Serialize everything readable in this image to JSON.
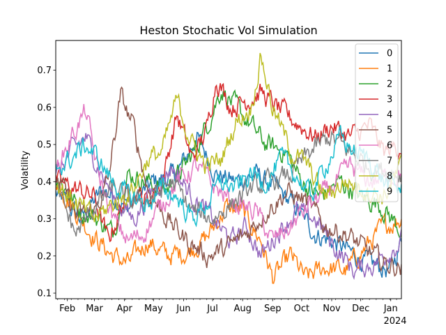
{
  "chart_data": {
    "type": "line",
    "title": "Heston Stochatic Vol Simulation",
    "xlabel": "",
    "ylabel": "Volatility",
    "ylim": [
      0.085,
      0.78
    ],
    "yticks": [
      "0.1",
      "0.2",
      "0.3",
      "0.4",
      "0.5",
      "0.6",
      "0.7"
    ],
    "x_start": "2023-01-20",
    "x_end": "2024-01-12",
    "x_major_ticks": [
      {
        "date": "2023-02-01",
        "label": "Feb"
      },
      {
        "date": "2023-03-01",
        "label": "Mar"
      },
      {
        "date": "2023-04-01",
        "label": "Apr"
      },
      {
        "date": "2023-05-01",
        "label": "May"
      },
      {
        "date": "2023-06-01",
        "label": "Jun"
      },
      {
        "date": "2023-07-01",
        "label": "Jul"
      },
      {
        "date": "2023-08-01",
        "label": "Aug"
      },
      {
        "date": "2023-09-01",
        "label": "Sep"
      },
      {
        "date": "2023-10-01",
        "label": "Oct"
      },
      {
        "date": "2023-11-01",
        "label": "Nov"
      },
      {
        "date": "2023-12-01",
        "label": "Dec"
      },
      {
        "date": "2024-01-01",
        "label": "Jan"
      }
    ],
    "x_year_label": "2024",
    "legend_position": "upper right",
    "series": [
      {
        "name": "0",
        "color": "#1f77b4",
        "points": [
          [
            "2023-01-20",
            0.37
          ],
          [
            "2023-02-15",
            0.3
          ],
          [
            "2023-03-10",
            0.38
          ],
          [
            "2023-04-05",
            0.33
          ],
          [
            "2023-05-01",
            0.4
          ],
          [
            "2023-05-25",
            0.42
          ],
          [
            "2023-06-15",
            0.52
          ],
          [
            "2023-07-05",
            0.42
          ],
          [
            "2023-07-25",
            0.4
          ],
          [
            "2023-08-15",
            0.42
          ],
          [
            "2023-09-05",
            0.38
          ],
          [
            "2023-09-25",
            0.33
          ],
          [
            "2023-10-15",
            0.26
          ],
          [
            "2023-11-01",
            0.24
          ],
          [
            "2023-11-20",
            0.21
          ],
          [
            "2023-12-10",
            0.18
          ],
          [
            "2024-01-01",
            0.16
          ],
          [
            "2024-01-12",
            0.24
          ]
        ]
      },
      {
        "name": "1",
        "color": "#ff7f0e",
        "points": [
          [
            "2023-01-20",
            0.41
          ],
          [
            "2023-02-10",
            0.32
          ],
          [
            "2023-03-01",
            0.25
          ],
          [
            "2023-03-20",
            0.2
          ],
          [
            "2023-04-05",
            0.18
          ],
          [
            "2023-04-25",
            0.24
          ],
          [
            "2023-05-15",
            0.2
          ],
          [
            "2023-06-05",
            0.21
          ],
          [
            "2023-06-25",
            0.25
          ],
          [
            "2023-07-15",
            0.33
          ],
          [
            "2023-08-01",
            0.32
          ],
          [
            "2023-08-20",
            0.24
          ],
          [
            "2023-09-01",
            0.14
          ],
          [
            "2023-09-20",
            0.2
          ],
          [
            "2023-10-05",
            0.14
          ],
          [
            "2023-10-25",
            0.17
          ],
          [
            "2023-11-15",
            0.16
          ],
          [
            "2023-12-05",
            0.22
          ],
          [
            "2023-12-25",
            0.28
          ],
          [
            "2024-01-12",
            0.3
          ]
        ]
      },
      {
        "name": "2",
        "color": "#2ca02c",
        "points": [
          [
            "2023-01-20",
            0.42
          ],
          [
            "2023-02-15",
            0.32
          ],
          [
            "2023-03-05",
            0.3
          ],
          [
            "2023-03-20",
            0.26
          ],
          [
            "2023-04-05",
            0.42
          ],
          [
            "2023-04-25",
            0.4
          ],
          [
            "2023-05-15",
            0.38
          ],
          [
            "2023-06-05",
            0.45
          ],
          [
            "2023-06-25",
            0.55
          ],
          [
            "2023-07-10",
            0.65
          ],
          [
            "2023-07-25",
            0.6
          ],
          [
            "2023-08-10",
            0.55
          ],
          [
            "2023-08-25",
            0.5
          ],
          [
            "2023-09-15",
            0.48
          ],
          [
            "2023-10-01",
            0.4
          ],
          [
            "2023-10-20",
            0.36
          ],
          [
            "2023-11-10",
            0.4
          ],
          [
            "2023-12-01",
            0.36
          ],
          [
            "2023-12-20",
            0.34
          ],
          [
            "2024-01-12",
            0.27
          ]
        ]
      },
      {
        "name": "3",
        "color": "#d62728",
        "points": [
          [
            "2023-01-20",
            0.4
          ],
          [
            "2023-02-10",
            0.38
          ],
          [
            "2023-03-01",
            0.36
          ],
          [
            "2023-03-15",
            0.24
          ],
          [
            "2023-04-05",
            0.38
          ],
          [
            "2023-04-25",
            0.35
          ],
          [
            "2023-05-10",
            0.4
          ],
          [
            "2023-05-25",
            0.58
          ],
          [
            "2023-06-10",
            0.46
          ],
          [
            "2023-06-25",
            0.54
          ],
          [
            "2023-07-05",
            0.68
          ],
          [
            "2023-07-20",
            0.6
          ],
          [
            "2023-08-05",
            0.62
          ],
          [
            "2023-08-20",
            0.64
          ],
          [
            "2023-09-05",
            0.6
          ],
          [
            "2023-09-25",
            0.56
          ],
          [
            "2023-10-15",
            0.52
          ],
          [
            "2023-11-01",
            0.55
          ],
          [
            "2023-11-20",
            0.52
          ],
          [
            "2023-12-10",
            0.55
          ],
          [
            "2023-12-25",
            0.48
          ],
          [
            "2024-01-12",
            0.5
          ]
        ]
      },
      {
        "name": "4",
        "color": "#9467bd",
        "points": [
          [
            "2023-01-20",
            0.41
          ],
          [
            "2023-02-05",
            0.48
          ],
          [
            "2023-02-20",
            0.52
          ],
          [
            "2023-03-05",
            0.44
          ],
          [
            "2023-03-20",
            0.36
          ],
          [
            "2023-04-10",
            0.3
          ],
          [
            "2023-05-01",
            0.38
          ],
          [
            "2023-05-20",
            0.44
          ],
          [
            "2023-06-10",
            0.36
          ],
          [
            "2023-07-01",
            0.3
          ],
          [
            "2023-07-20",
            0.24
          ],
          [
            "2023-08-05",
            0.28
          ],
          [
            "2023-08-20",
            0.2
          ],
          [
            "2023-09-05",
            0.26
          ],
          [
            "2023-09-25",
            0.32
          ],
          [
            "2023-10-15",
            0.3
          ],
          [
            "2023-11-05",
            0.22
          ],
          [
            "2023-11-25",
            0.16
          ],
          [
            "2023-12-15",
            0.18
          ],
          [
            "2024-01-12",
            0.24
          ]
        ]
      },
      {
        "name": "5",
        "color": "#8c564b",
        "points": [
          [
            "2023-01-20",
            0.42
          ],
          [
            "2023-02-10",
            0.31
          ],
          [
            "2023-03-01",
            0.32
          ],
          [
            "2023-03-15",
            0.4
          ],
          [
            "2023-03-28",
            0.63
          ],
          [
            "2023-04-10",
            0.55
          ],
          [
            "2023-04-25",
            0.38
          ],
          [
            "2023-05-15",
            0.3
          ],
          [
            "2023-06-05",
            0.24
          ],
          [
            "2023-06-25",
            0.2
          ],
          [
            "2023-07-15",
            0.22
          ],
          [
            "2023-08-05",
            0.26
          ],
          [
            "2023-08-25",
            0.32
          ],
          [
            "2023-09-15",
            0.37
          ],
          [
            "2023-10-05",
            0.35
          ],
          [
            "2023-10-25",
            0.28
          ],
          [
            "2023-11-15",
            0.26
          ],
          [
            "2023-12-05",
            0.22
          ],
          [
            "2023-12-25",
            0.18
          ],
          [
            "2024-01-12",
            0.17
          ]
        ]
      },
      {
        "name": "6",
        "color": "#e377c2",
        "points": [
          [
            "2023-01-20",
            0.43
          ],
          [
            "2023-02-05",
            0.52
          ],
          [
            "2023-02-20",
            0.59
          ],
          [
            "2023-03-05",
            0.42
          ],
          [
            "2023-03-20",
            0.3
          ],
          [
            "2023-04-05",
            0.24
          ],
          [
            "2023-04-20",
            0.26
          ],
          [
            "2023-05-05",
            0.32
          ],
          [
            "2023-05-25",
            0.4
          ],
          [
            "2023-06-15",
            0.44
          ],
          [
            "2023-07-05",
            0.38
          ],
          [
            "2023-07-25",
            0.34
          ],
          [
            "2023-08-15",
            0.32
          ],
          [
            "2023-09-01",
            0.24
          ],
          [
            "2023-09-20",
            0.28
          ],
          [
            "2023-10-10",
            0.34
          ],
          [
            "2023-10-30",
            0.38
          ],
          [
            "2023-11-20",
            0.44
          ],
          [
            "2023-12-10",
            0.4
          ],
          [
            "2024-01-12",
            0.42
          ]
        ]
      },
      {
        "name": "7",
        "color": "#7f7f7f",
        "points": [
          [
            "2023-01-20",
            0.38
          ],
          [
            "2023-02-10",
            0.26
          ],
          [
            "2023-03-01",
            0.33
          ],
          [
            "2023-03-20",
            0.38
          ],
          [
            "2023-04-10",
            0.34
          ],
          [
            "2023-05-01",
            0.36
          ],
          [
            "2023-05-20",
            0.4
          ],
          [
            "2023-06-10",
            0.32
          ],
          [
            "2023-07-01",
            0.3
          ],
          [
            "2023-07-20",
            0.34
          ],
          [
            "2023-08-10",
            0.38
          ],
          [
            "2023-09-01",
            0.4
          ],
          [
            "2023-09-20",
            0.42
          ],
          [
            "2023-10-10",
            0.48
          ],
          [
            "2023-10-30",
            0.52
          ],
          [
            "2023-11-20",
            0.48
          ],
          [
            "2023-12-10",
            0.44
          ],
          [
            "2024-01-12",
            0.42
          ]
        ]
      },
      {
        "name": "8",
        "color": "#bcbd22",
        "points": [
          [
            "2023-01-20",
            0.4
          ],
          [
            "2023-02-10",
            0.34
          ],
          [
            "2023-03-01",
            0.3
          ],
          [
            "2023-03-20",
            0.34
          ],
          [
            "2023-04-10",
            0.38
          ],
          [
            "2023-04-25",
            0.46
          ],
          [
            "2023-05-10",
            0.48
          ],
          [
            "2023-05-25",
            0.62
          ],
          [
            "2023-06-10",
            0.5
          ],
          [
            "2023-06-25",
            0.44
          ],
          [
            "2023-07-10",
            0.46
          ],
          [
            "2023-07-25",
            0.56
          ],
          [
            "2023-08-10",
            0.6
          ],
          [
            "2023-08-20",
            0.74
          ],
          [
            "2023-09-01",
            0.6
          ],
          [
            "2023-09-20",
            0.48
          ],
          [
            "2023-10-05",
            0.45
          ],
          [
            "2023-10-25",
            0.36
          ],
          [
            "2023-11-15",
            0.4
          ],
          [
            "2023-12-05",
            0.38
          ],
          [
            "2023-12-25",
            0.36
          ],
          [
            "2024-01-12",
            0.44
          ]
        ]
      },
      {
        "name": "9",
        "color": "#17becf",
        "points": [
          [
            "2023-01-20",
            0.44
          ],
          [
            "2023-02-05",
            0.46
          ],
          [
            "2023-02-20",
            0.5
          ],
          [
            "2023-03-05",
            0.46
          ],
          [
            "2023-03-20",
            0.4
          ],
          [
            "2023-04-05",
            0.36
          ],
          [
            "2023-04-25",
            0.34
          ],
          [
            "2023-05-10",
            0.38
          ],
          [
            "2023-05-25",
            0.36
          ],
          [
            "2023-06-10",
            0.3
          ],
          [
            "2023-06-25",
            0.34
          ],
          [
            "2023-07-10",
            0.4
          ],
          [
            "2023-07-25",
            0.38
          ],
          [
            "2023-08-10",
            0.42
          ],
          [
            "2023-08-25",
            0.4
          ],
          [
            "2023-09-10",
            0.46
          ],
          [
            "2023-09-25",
            0.42
          ],
          [
            "2023-10-10",
            0.36
          ],
          [
            "2023-10-25",
            0.44
          ],
          [
            "2023-11-10",
            0.52
          ],
          [
            "2023-11-25",
            0.48
          ],
          [
            "2023-12-10",
            0.46
          ],
          [
            "2023-12-25",
            0.4
          ],
          [
            "2024-01-12",
            0.38
          ]
        ]
      }
    ]
  }
}
